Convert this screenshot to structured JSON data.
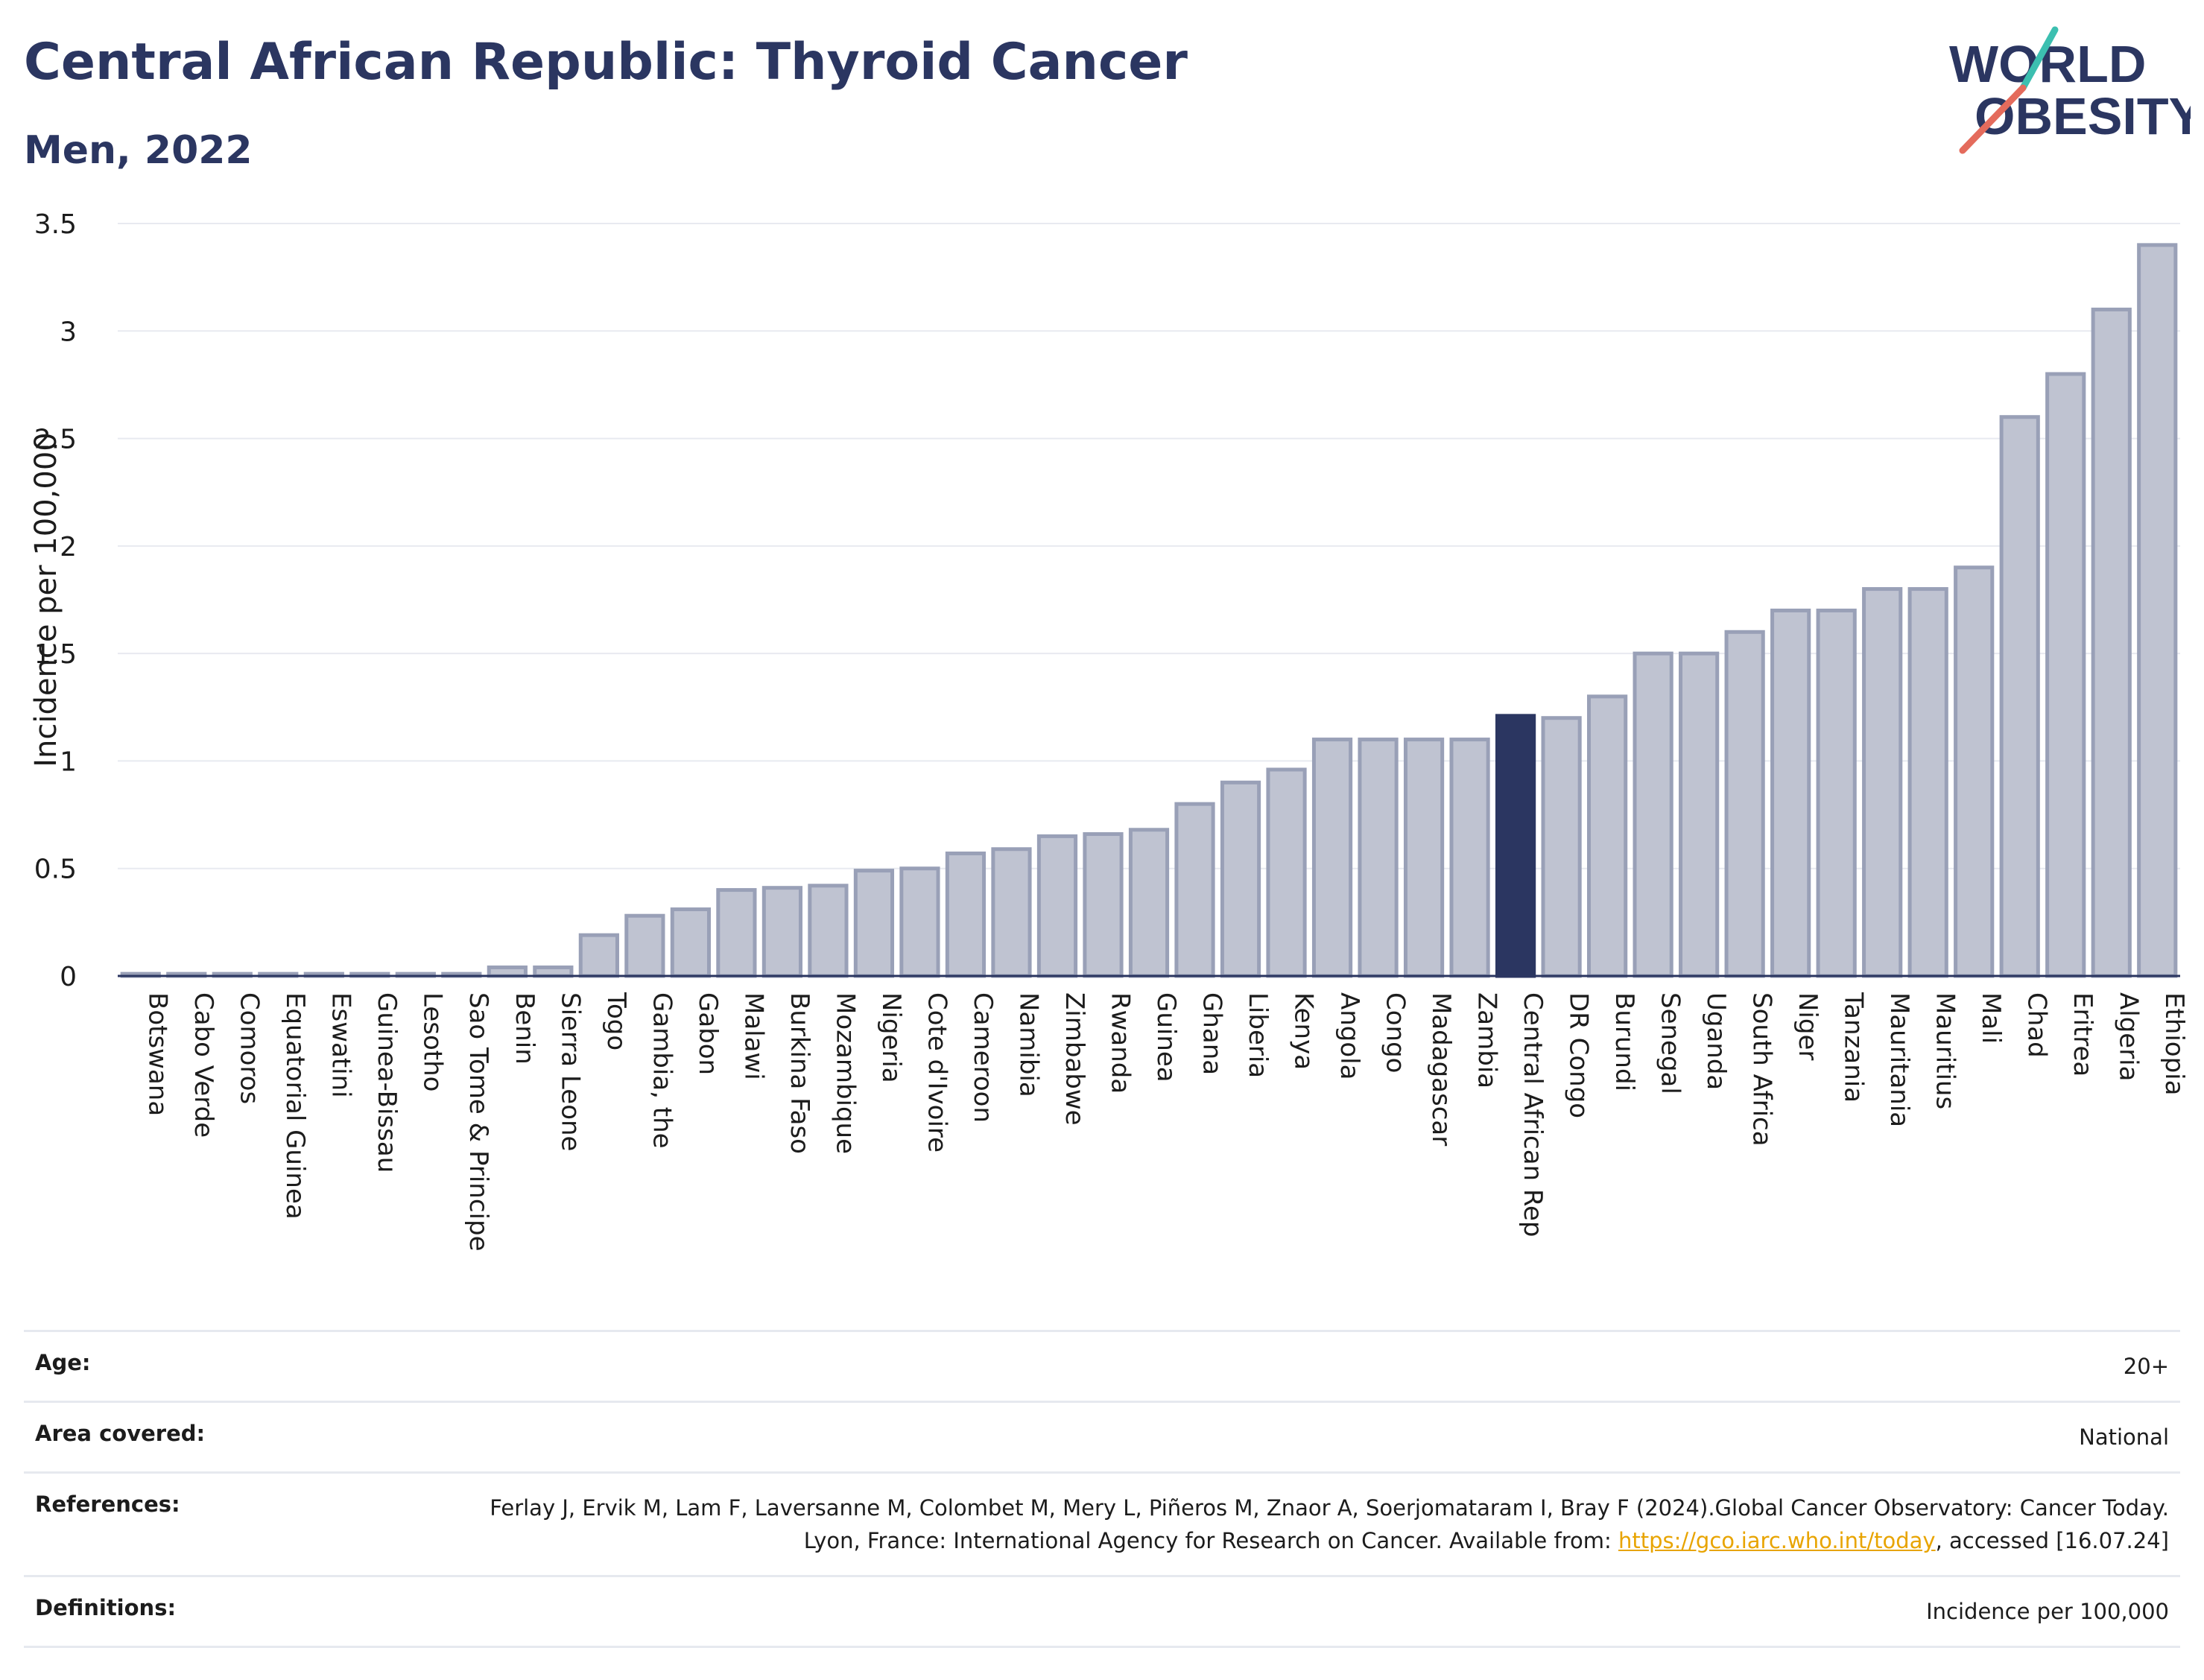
{
  "header": {
    "title": "Central African Republic: Thyroid Cancer",
    "subtitle": "Men, 2022"
  },
  "logo": {
    "line1": "WORLD",
    "line2": "OBESITY"
  },
  "chart_data": {
    "type": "bar",
    "title": "Central African Republic: Thyroid Cancer",
    "subtitle": "Men, 2022",
    "xlabel": "",
    "ylabel": "Incidence per 100,000",
    "ylim": [
      0,
      3.5
    ],
    "yticks": [
      0,
      0.5,
      1,
      1.5,
      2,
      2.5,
      3,
      3.5
    ],
    "ytick_labels": [
      "0",
      "0.5",
      "1",
      "1.5",
      "2",
      "2.5",
      "3",
      "3.5"
    ],
    "grid": true,
    "highlight": "Central African Rep",
    "colors": {
      "bar": "#bfc3d1",
      "bar_edge": "#99a0b7",
      "highlight": "#2b3661"
    },
    "categories": [
      "Botswana",
      "Cabo Verde",
      "Comoros",
      "Equatorial Guinea",
      "Eswatini",
      "Guinea-Bissau",
      "Lesotho",
      "Sao Tome & Principe",
      "Benin",
      "Sierra Leone",
      "Togo",
      "Gambia, the",
      "Gabon",
      "Malawi",
      "Burkina Faso",
      "Mozambique",
      "Nigeria",
      "Cote d'Ivoire",
      "Cameroon",
      "Namibia",
      "Zimbabwe",
      "Rwanda",
      "Guinea",
      "Ghana",
      "Liberia",
      "Kenya",
      "Angola",
      "Congo",
      "Madagascar",
      "Zambia",
      "Central African Rep",
      "DR Congo",
      "Burundi",
      "Senegal",
      "Uganda",
      "South Africa",
      "Niger",
      "Tanzania",
      "Mauritania",
      "Mauritius",
      "Mali",
      "Chad",
      "Eritrea",
      "Algeria",
      "Ethiopia"
    ],
    "values": [
      0.01,
      0.01,
      0.01,
      0.01,
      0.01,
      0.01,
      0.01,
      0.01,
      0.04,
      0.04,
      0.19,
      0.28,
      0.31,
      0.4,
      0.41,
      0.42,
      0.49,
      0.5,
      0.57,
      0.59,
      0.65,
      0.66,
      0.68,
      0.8,
      0.9,
      0.96,
      1.1,
      1.1,
      1.1,
      1.1,
      1.21,
      1.2,
      1.3,
      1.5,
      1.5,
      1.6,
      1.7,
      1.7,
      1.8,
      1.8,
      1.9,
      2.6,
      2.8,
      3.1,
      3.4
    ]
  },
  "info": {
    "age_label": "Age:",
    "age_value": "20+",
    "area_label": "Area covered:",
    "area_value": "National",
    "references_label": "References:",
    "references_text": "Ferlay J, Ervik M, Lam F, Laversanne M, Colombet M, Mery L, Piñeros M, Znaor A, Soerjomataram I, Bray F (2024).Global Cancer Observatory: Cancer Today. Lyon, France: International Agency for Research on Cancer. Available from: ",
    "references_link": "https://gco.iarc.who.int/today",
    "references_tail": ", accessed [16.07.24]",
    "definitions_label": "Definitions:",
    "definitions_value": "Incidence per 100,000"
  }
}
